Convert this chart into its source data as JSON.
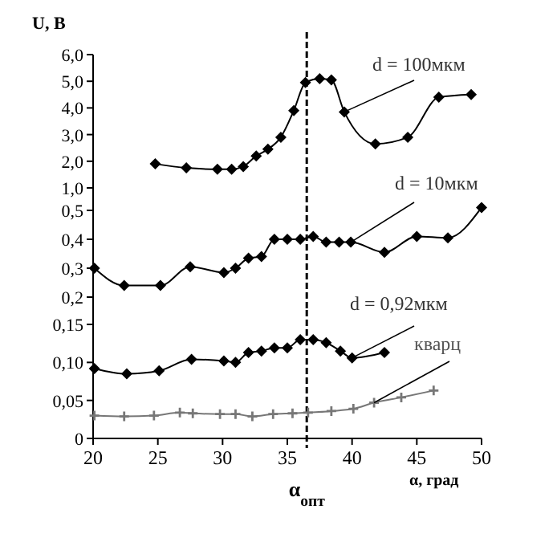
{
  "chart_data": [
    {
      "type": "line",
      "ylabel": "U, В",
      "xlim": [
        20,
        50
      ],
      "ylim": [
        1,
        6
      ],
      "yticks": [
        {
          "value": 1,
          "label": "1,0"
        },
        {
          "value": 2,
          "label": "2,0"
        },
        {
          "value": 3,
          "label": "3,0"
        },
        {
          "value": 4,
          "label": "4,0"
        },
        {
          "value": 5,
          "label": "5,0"
        },
        {
          "value": 6,
          "label": "6,0"
        }
      ],
      "tick_labels": "y",
      "grid": false,
      "legend": false,
      "line_style": "solid",
      "ref_lines": [
        {
          "axis": "x",
          "value": 36.5,
          "line_style": "dashed",
          "color": "#000000"
        }
      ],
      "series": [
        {
          "name": "d = 100мкм",
          "color": "#000000",
          "marker": "diamond",
          "x": [
            24.8,
            27.2,
            29.6,
            30.7,
            31.6,
            32.6,
            33.5,
            34.5,
            35.5,
            36.4,
            37.5,
            38.4,
            39.4,
            41.8,
            44.3,
            46.7,
            49.2
          ],
          "values": [
            1.9,
            1.75,
            1.7,
            1.7,
            1.8,
            2.2,
            2.45,
            2.9,
            3.9,
            4.95,
            5.1,
            5.05,
            3.85,
            2.65,
            2.9,
            4.4,
            4.5
          ]
        }
      ]
    },
    {
      "type": "line",
      "xlim": [
        20,
        50
      ],
      "ylim": [
        0.2,
        0.52
      ],
      "yticks": [
        {
          "value": 0.2,
          "label": "0,2"
        },
        {
          "value": 0.3,
          "label": "0,3"
        },
        {
          "value": 0.4,
          "label": "0,4"
        },
        {
          "value": 0.5,
          "label": "0,5"
        }
      ],
      "tick_labels": "y",
      "grid": false,
      "legend": false,
      "line_style": "solid",
      "ref_lines": [
        {
          "axis": "x",
          "value": 36.5,
          "line_style": "dashed",
          "color": "#000000"
        }
      ],
      "series": [
        {
          "name": "d = 10мкм",
          "color": "#000000",
          "marker": "diamond",
          "x": [
            20.1,
            22.4,
            25.2,
            27.5,
            30.1,
            31,
            32,
            33,
            34,
            35,
            36,
            37,
            38,
            39,
            39.9,
            42.5,
            45,
            47.4,
            50
          ],
          "values": [
            0.3,
            0.24,
            0.24,
            0.305,
            0.285,
            0.3,
            0.335,
            0.34,
            0.4,
            0.4,
            0.4,
            0.41,
            0.39,
            0.39,
            0.39,
            0.355,
            0.41,
            0.405,
            0.51
          ]
        }
      ]
    },
    {
      "type": "line",
      "xlabel": "α, град",
      "xlim": [
        20,
        50
      ],
      "xticks": [
        20,
        25,
        30,
        35,
        40,
        45,
        50
      ],
      "ylim": [
        0,
        0.15
      ],
      "yticks": [
        0,
        {
          "value": 0.05,
          "label": "0,05"
        },
        {
          "value": 0.1,
          "label": "0,10"
        },
        {
          "value": 0.15,
          "label": "0,15"
        }
      ],
      "grid": false,
      "legend": false,
      "line_style": "solid",
      "ref_lines": [
        {
          "axis": "x",
          "value": 36.5,
          "label": "α$_{опт}$",
          "line_style": "dashed",
          "color": "#000000"
        }
      ],
      "series": [
        {
          "name": "d = 0,92мкм",
          "color": "#000000",
          "marker": "diamond",
          "x": [
            20.1,
            22.6,
            25.1,
            27.6,
            30.1,
            31,
            32,
            33,
            34,
            35,
            36,
            37,
            38,
            39.1,
            40,
            42.5
          ],
          "values": [
            0.092,
            0.085,
            0.089,
            0.104,
            0.102,
            0.1,
            0.113,
            0.115,
            0.119,
            0.119,
            0.13,
            0.13,
            0.126,
            0.115,
            0.106,
            0.113
          ]
        },
        {
          "name": "кварц",
          "color": "#777777",
          "marker": "cross",
          "x": [
            20.1,
            22.4,
            24.7,
            26.7,
            27.7,
            29.8,
            31,
            32.3,
            33.9,
            35.4,
            36.6,
            38.4,
            40.1,
            41.7,
            43.8,
            46.3
          ],
          "values": [
            0.03,
            0.029,
            0.03,
            0.034,
            0.033,
            0.032,
            0.032,
            0.029,
            0.032,
            0.033,
            0.034,
            0.036,
            0.039,
            0.047,
            0.054,
            0.063
          ]
        }
      ]
    }
  ]
}
